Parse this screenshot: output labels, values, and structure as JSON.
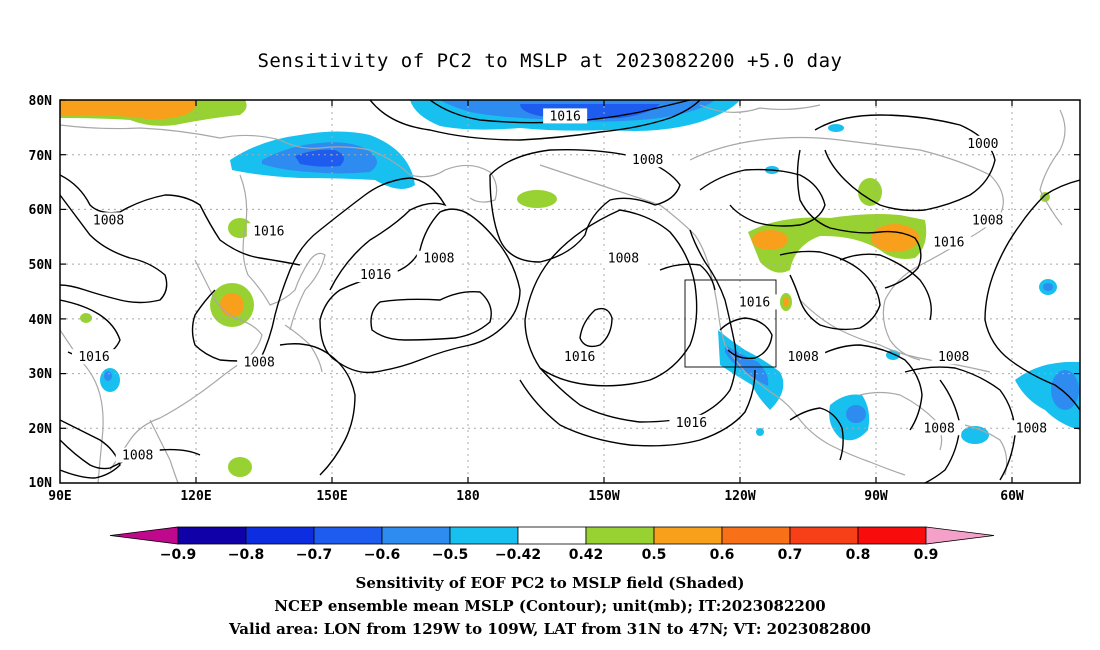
{
  "title": "Sensitivity of PC2 to MSLP at 2023082200 +5.0 day",
  "map": {
    "lat_labels": [
      "80N",
      "70N",
      "60N",
      "50N",
      "40N",
      "30N",
      "20N",
      "10N"
    ],
    "lon_labels": [
      "90E",
      "120E",
      "150E",
      "180",
      "150W",
      "120W",
      "90W",
      "60W"
    ],
    "contour_labels": [
      {
        "text": "1016",
        "lon": -166,
        "lat": 77
      },
      {
        "text": "1008",
        "lon": -149,
        "lat": 69
      },
      {
        "text": "1000",
        "lon": -80,
        "lat": 72
      },
      {
        "text": "1008",
        "lon": -79,
        "lat": 58
      },
      {
        "text": "1016",
        "lon": -87,
        "lat": 54
      },
      {
        "text": "1008",
        "lon": 100,
        "lat": 58
      },
      {
        "text": "1016",
        "lon": 133,
        "lat": 56
      },
      {
        "text": "1008",
        "lon": 168,
        "lat": 51
      },
      {
        "text": "1008",
        "lon": -154,
        "lat": 51
      },
      {
        "text": "1016",
        "lon": 155,
        "lat": 48
      },
      {
        "text": "1016",
        "lon": -127,
        "lat": 43
      },
      {
        "text": "1016",
        "lon": -163,
        "lat": 33
      },
      {
        "text": "1008",
        "lon": -117,
        "lat": 33
      },
      {
        "text": "1008",
        "lon": -86,
        "lat": 33
      },
      {
        "text": "1016",
        "lon": 97,
        "lat": 33
      },
      {
        "text": "1008",
        "lon": 131,
        "lat": 32
      },
      {
        "text": "1016",
        "lon": -140,
        "lat": 21
      },
      {
        "text": "1008",
        "lon": -89,
        "lat": 20
      },
      {
        "text": "1008",
        "lon": -70,
        "lat": 20
      },
      {
        "text": "1008",
        "lon": 106,
        "lat": 15
      }
    ],
    "valid_box": {
      "lon_from": -129,
      "lon_to": -109,
      "lat_from": 31,
      "lat_to": 47
    }
  },
  "colorbar": {
    "labels": [
      "−0.9",
      "−0.8",
      "−0.7",
      "−0.6",
      "−0.5",
      "−0.42",
      "0.42",
      "0.5",
      "0.6",
      "0.7",
      "0.8",
      "0.9"
    ],
    "colors": [
      "#0f00a8",
      "#0d2ee0",
      "#1e5cf0",
      "#2e8cf0",
      "#18c0f0",
      "#ffffff",
      "#98d232",
      "#f8a01c",
      "#f87018",
      "#f84018",
      "#f80c0c"
    ],
    "left_arrow_color": "#c0088c",
    "right_arrow_color": "#f4a0c8"
  },
  "captions": [
    "Sensitivity of EOF PC2 to MSLP field (Shaded)",
    "NCEP ensemble mean MSLP (Contour); unit(mb); IT:2023082200",
    "Valid area: LON from 129W to 109W, LAT from 31N to 47N; VT: 2023082800"
  ]
}
